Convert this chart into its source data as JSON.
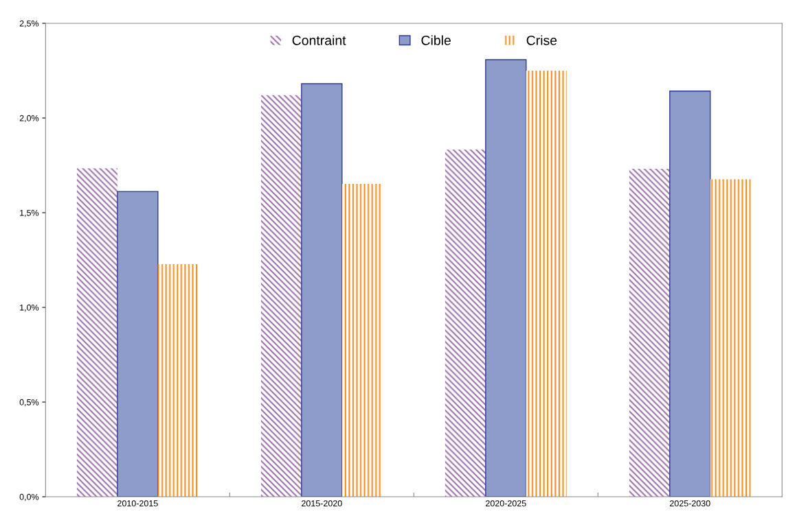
{
  "chart_data": {
    "type": "bar",
    "categories": [
      "2010-2015",
      "2015-2020",
      "2020-2025",
      "2025-2030"
    ],
    "series": [
      {
        "name": "Contraint",
        "color": "#9b6fa8",
        "values": [
          1.735,
          2.12,
          1.833,
          1.732
        ]
      },
      {
        "name": "Cible",
        "color": "#8e9ccb",
        "values": [
          1.612,
          2.181,
          2.308,
          2.142
        ]
      },
      {
        "name": "Crise",
        "color": "#f28c1c",
        "values": [
          1.228,
          1.652,
          2.25,
          1.677
        ]
      }
    ],
    "ylim": [
      0,
      2.5
    ],
    "yticks": [
      {
        "value": 0,
        "label": "0,0%"
      },
      {
        "value": 0.5,
        "label": "0,5%"
      },
      {
        "value": 1.0,
        "label": "1,0%"
      },
      {
        "value": 1.5,
        "label": "1,5%"
      },
      {
        "value": 2.0,
        "label": "2,0%"
      },
      {
        "value": 2.5,
        "label": "2,5%"
      }
    ],
    "grid": false,
    "legend": "top"
  }
}
